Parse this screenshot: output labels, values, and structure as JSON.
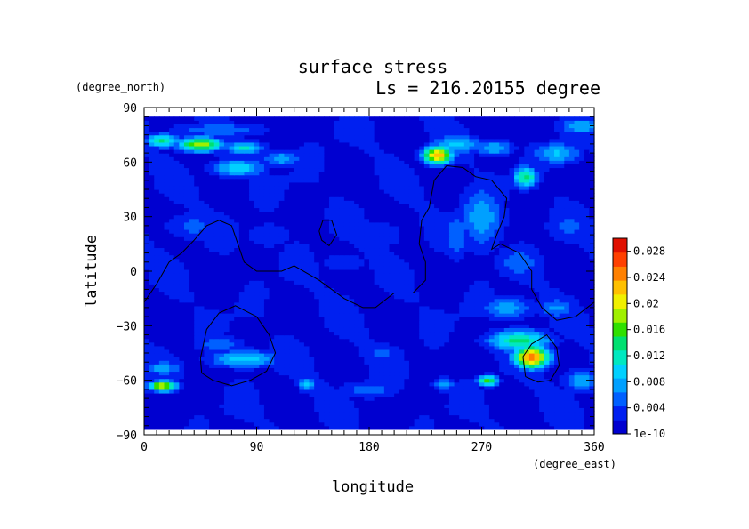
{
  "chart_data": {
    "type": "heatmap",
    "title": "surface stress",
    "subtitle": "Ls = 216.20155 degree",
    "xlabel": "longitude",
    "ylabel": "latitude",
    "x_unit": "(degree_east)",
    "y_unit": "(degree_north)",
    "xlim": [
      0,
      360
    ],
    "ylim": [
      -90,
      90
    ],
    "data_lat_range": [
      -87,
      85
    ],
    "x_ticks": [
      "0",
      "90",
      "180",
      "270",
      "360"
    ],
    "y_ticks": [
      "90",
      "60",
      "30",
      "0",
      "−30",
      "−60",
      "−90"
    ],
    "x_tick_values": [
      0,
      90,
      180,
      270,
      360
    ],
    "y_tick_values": [
      90,
      60,
      30,
      0,
      -30,
      -60,
      -90
    ],
    "colorbar": {
      "min": 1e-10,
      "max": 0.03,
      "labels": [
        "0.028",
        "0.024",
        "0.02",
        "0.016",
        "0.012",
        "0.008",
        "0.004",
        "1e-10"
      ],
      "label_values": [
        0.028,
        0.024,
        0.02,
        0.016,
        0.012,
        0.008,
        0.004,
        0
      ],
      "colors": [
        "#0000d0",
        "#0020f0",
        "#0060ff",
        "#00a0ff",
        "#00d0ff",
        "#00e8c0",
        "#00e070",
        "#30e000",
        "#a0f000",
        "#f0f000",
        "#ffc000",
        "#ff8000",
        "#ff4000",
        "#e01000"
      ]
    },
    "background_value": 0.0018,
    "hotspots": [
      {
        "lon": 45,
        "lat": 70,
        "value": 0.019,
        "rlon": 18,
        "rlat": 4
      },
      {
        "lon": 15,
        "lat": 72,
        "value": 0.013,
        "rlon": 14,
        "rlat": 4
      },
      {
        "lon": 80,
        "lat": 68,
        "value": 0.011,
        "rlon": 16,
        "rlat": 4
      },
      {
        "lon": 75,
        "lat": 57,
        "value": 0.01,
        "rlon": 22,
        "rlat": 5
      },
      {
        "lon": 110,
        "lat": 62,
        "value": 0.008,
        "rlon": 16,
        "rlat": 5
      },
      {
        "lon": 60,
        "lat": 78,
        "value": 0.006,
        "rlon": 40,
        "rlat": 4
      },
      {
        "lon": 235,
        "lat": 64,
        "value": 0.023,
        "rlon": 12,
        "rlat": 5
      },
      {
        "lon": 250,
        "lat": 70,
        "value": 0.01,
        "rlon": 20,
        "rlat": 5
      },
      {
        "lon": 280,
        "lat": 68,
        "value": 0.008,
        "rlon": 16,
        "rlat": 5
      },
      {
        "lon": 305,
        "lat": 52,
        "value": 0.014,
        "rlon": 10,
        "rlat": 6
      },
      {
        "lon": 330,
        "lat": 65,
        "value": 0.009,
        "rlon": 20,
        "rlat": 6
      },
      {
        "lon": 350,
        "lat": 80,
        "value": 0.008,
        "rlon": 20,
        "rlat": 5
      },
      {
        "lon": 270,
        "lat": 30,
        "value": 0.008,
        "rlon": 18,
        "rlat": 18
      },
      {
        "lon": 250,
        "lat": 20,
        "value": 0.006,
        "rlon": 10,
        "rlat": 15
      },
      {
        "lon": 300,
        "lat": 5,
        "value": 0.006,
        "rlon": 20,
        "rlat": 10
      },
      {
        "lon": 340,
        "lat": 25,
        "value": 0.005,
        "rlon": 20,
        "rlat": 10
      },
      {
        "lon": 40,
        "lat": 25,
        "value": 0.005,
        "rlon": 25,
        "rlat": 8
      },
      {
        "lon": 100,
        "lat": 20,
        "value": 0.004,
        "rlon": 20,
        "rlat": 8
      },
      {
        "lon": 185,
        "lat": 20,
        "value": 0.004,
        "rlon": 25,
        "rlat": 10
      },
      {
        "lon": 160,
        "lat": 5,
        "value": 0.004,
        "rlon": 20,
        "rlat": 6
      },
      {
        "lon": 80,
        "lat": -48,
        "value": 0.01,
        "rlon": 28,
        "rlat": 5
      },
      {
        "lon": 60,
        "lat": -40,
        "value": 0.006,
        "rlon": 20,
        "rlat": 5
      },
      {
        "lon": 190,
        "lat": -45,
        "value": 0.005,
        "rlon": 20,
        "rlat": 6
      },
      {
        "lon": 130,
        "lat": -62,
        "value": 0.01,
        "rlon": 7,
        "rlat": 4
      },
      {
        "lon": 15,
        "lat": -63,
        "value": 0.02,
        "rlon": 12,
        "rlat": 3
      },
      {
        "lon": 15,
        "lat": -53,
        "value": 0.008,
        "rlon": 15,
        "rlat": 4
      },
      {
        "lon": 275,
        "lat": -60,
        "value": 0.016,
        "rlon": 8,
        "rlat": 3
      },
      {
        "lon": 310,
        "lat": -47,
        "value": 0.026,
        "rlon": 14,
        "rlat": 6
      },
      {
        "lon": 300,
        "lat": -38,
        "value": 0.014,
        "rlon": 25,
        "rlat": 6
      },
      {
        "lon": 290,
        "lat": -20,
        "value": 0.008,
        "rlon": 22,
        "rlat": 6
      },
      {
        "lon": 330,
        "lat": -20,
        "value": 0.007,
        "rlon": 15,
        "rlat": 6
      },
      {
        "lon": 350,
        "lat": -60,
        "value": 0.008,
        "rlon": 15,
        "rlat": 6
      },
      {
        "lon": 240,
        "lat": -62,
        "value": 0.007,
        "rlon": 10,
        "rlat": 4
      },
      {
        "lon": 180,
        "lat": -65,
        "value": 0.006,
        "rlon": 25,
        "rlat": 5
      }
    ],
    "contours": [
      [
        [
          0,
          -17
        ],
        [
          10,
          -7
        ],
        [
          20,
          5
        ],
        [
          30,
          10
        ],
        [
          40,
          17
        ],
        [
          50,
          25
        ],
        [
          60,
          28
        ],
        [
          70,
          25
        ],
        [
          75,
          15
        ],
        [
          80,
          5
        ],
        [
          90,
          0
        ],
        [
          110,
          0
        ],
        [
          120,
          3
        ],
        [
          140,
          -5
        ],
        [
          160,
          -15
        ],
        [
          175,
          -20
        ],
        [
          185,
          -20
        ],
        [
          200,
          -12
        ],
        [
          215,
          -12
        ],
        [
          225,
          -5
        ],
        [
          225,
          5
        ],
        [
          220,
          15
        ],
        [
          222,
          28
        ],
        [
          228,
          35
        ],
        [
          232,
          50
        ],
        [
          242,
          58
        ],
        [
          255,
          57
        ],
        [
          265,
          52
        ],
        [
          278,
          50
        ],
        [
          290,
          40
        ],
        [
          288,
          30
        ],
        [
          282,
          20
        ],
        [
          278,
          12
        ],
        [
          285,
          15
        ],
        [
          300,
          10
        ],
        [
          310,
          0
        ],
        [
          310,
          -10
        ],
        [
          318,
          -20
        ],
        [
          330,
          -27
        ],
        [
          345,
          -25
        ],
        [
          360,
          -17
        ]
      ],
      [
        [
          140,
          22
        ],
        [
          143,
          28
        ],
        [
          150,
          28
        ],
        [
          154,
          20
        ],
        [
          148,
          14
        ],
        [
          142,
          17
        ],
        [
          140,
          22
        ]
      ],
      [
        [
          45,
          -48
        ],
        [
          50,
          -32
        ],
        [
          60,
          -23
        ],
        [
          73,
          -19
        ],
        [
          90,
          -25
        ],
        [
          100,
          -35
        ],
        [
          105,
          -45
        ],
        [
          98,
          -55
        ],
        [
          85,
          -60
        ],
        [
          70,
          -63
        ],
        [
          55,
          -60
        ],
        [
          46,
          -56
        ],
        [
          45,
          -48
        ]
      ],
      [
        [
          305,
          -58
        ],
        [
          303,
          -47
        ],
        [
          310,
          -40
        ],
        [
          322,
          -35
        ],
        [
          330,
          -42
        ],
        [
          332,
          -52
        ],
        [
          325,
          -60
        ],
        [
          315,
          -61
        ],
        [
          305,
          -58
        ]
      ]
    ]
  }
}
